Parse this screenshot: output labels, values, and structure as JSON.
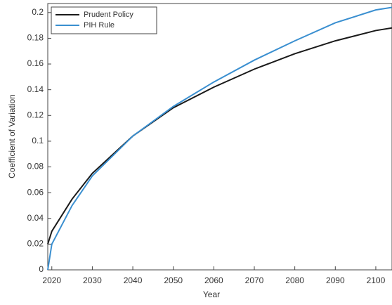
{
  "chart_data": {
    "type": "line",
    "x_label": "Year",
    "y_label": "Coefficient of Variation",
    "x": [
      2019,
      2020,
      2025,
      2030,
      2040,
      2050,
      2060,
      2070,
      2080,
      2090,
      2100,
      2104
    ],
    "series": [
      {
        "name": "Prudent Policy",
        "color": "#1a1a1a",
        "values": [
          0.02,
          0.03,
          0.055,
          0.075,
          0.104,
          0.126,
          0.142,
          0.156,
          0.168,
          0.178,
          0.186,
          0.188
        ]
      },
      {
        "name": "PIH Rule",
        "color": "#3a8fd0",
        "values": [
          0.0,
          0.02,
          0.05,
          0.073,
          0.104,
          0.127,
          0.146,
          0.163,
          0.178,
          0.192,
          0.202,
          0.204
        ]
      }
    ],
    "xlim": [
      2019,
      2104
    ],
    "xticks": [
      2020,
      2030,
      2040,
      2050,
      2060,
      2070,
      2080,
      2090,
      2100
    ],
    "ylim": [
      0,
      0.207
    ],
    "yticks": [
      0,
      0.02,
      0.04,
      0.06,
      0.08,
      0.1,
      0.12,
      0.14,
      0.16,
      0.18,
      0.2
    ],
    "legend": "top-left"
  }
}
